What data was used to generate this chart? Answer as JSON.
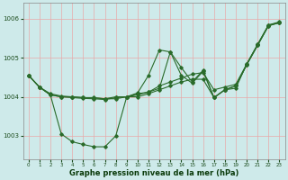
{
  "background_color": "#ceeaea",
  "grid_color": "#e8a8a8",
  "line_color": "#2a6b2a",
  "xlabel": "Graphe pression niveau de la mer (hPa)",
  "xlim": [
    0,
    23
  ],
  "ylim": [
    1002.4,
    1006.4
  ],
  "yticks": [
    1003,
    1004,
    1005,
    1006
  ],
  "xticks": [
    0,
    1,
    2,
    3,
    4,
    5,
    6,
    7,
    8,
    9,
    10,
    11,
    12,
    13,
    14,
    15,
    16,
    17,
    18,
    19,
    20,
    21,
    22,
    23
  ],
  "line1_y": [
    1004.55,
    1004.25,
    1004.05,
    1003.05,
    1002.85,
    1002.78,
    1002.72,
    1002.72,
    1003.0,
    1004.0,
    1004.0,
    1004.08,
    1004.18,
    1004.28,
    1004.38,
    1004.45,
    1004.45,
    1003.98,
    1004.18,
    1004.28,
    1004.82,
    1005.32,
    1005.82,
    1005.9
  ],
  "line2_y": [
    1004.55,
    1004.25,
    1004.05,
    1004.0,
    1004.0,
    1003.98,
    1003.98,
    1003.95,
    1004.0,
    1004.0,
    1004.1,
    1004.55,
    1005.2,
    1005.15,
    1004.55,
    1004.35,
    1004.65,
    1003.98,
    1004.18,
    1004.28,
    1004.82,
    1005.32,
    1005.82,
    1005.9
  ],
  "line3_y": [
    1004.55,
    1004.25,
    1004.08,
    1004.02,
    1004.0,
    1003.98,
    1003.97,
    1003.95,
    1003.95,
    1004.0,
    1004.05,
    1004.12,
    1004.28,
    1004.38,
    1004.48,
    1004.58,
    1004.62,
    1004.18,
    1004.25,
    1004.32,
    1004.84,
    1005.34,
    1005.84,
    1005.92
  ],
  "line4_y": [
    1004.55,
    1004.25,
    1004.05,
    1004.0,
    1003.98,
    1003.96,
    1003.95,
    1003.93,
    1003.98,
    1004.0,
    1004.08,
    1004.12,
    1004.22,
    1005.15,
    1004.75,
    1004.38,
    1004.68,
    1003.98,
    1004.18,
    1004.22,
    1004.84,
    1005.34,
    1005.84,
    1005.9
  ]
}
